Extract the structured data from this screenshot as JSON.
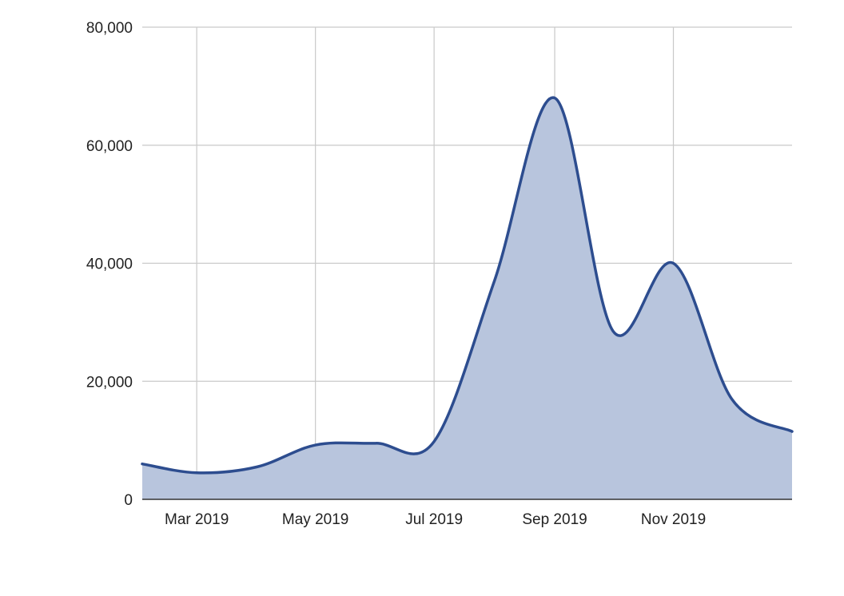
{
  "chart_data": {
    "type": "area",
    "title": "",
    "xlabel": "",
    "ylabel": "",
    "x": [
      "2019-02-01",
      "2019-03-01",
      "2019-04-01",
      "2019-05-01",
      "2019-06-01",
      "2019-07-01",
      "2019-08-01",
      "2019-09-01",
      "2019-10-01",
      "2019-11-01",
      "2019-12-01",
      "2020-01-01"
    ],
    "series": [
      {
        "values": [
          6000,
          4500,
          5500,
          9200,
          9500,
          9800,
          37000,
          68000,
          28500,
          40000,
          17000,
          11500
        ]
      }
    ],
    "ylim": [
      0,
      80000
    ],
    "xlim": [
      "2019-02-01",
      "2020-01-01"
    ],
    "yticks": [
      {
        "value": 0,
        "label": "0"
      },
      {
        "value": 20000,
        "label": "20,000"
      },
      {
        "value": 40000,
        "label": "40,000"
      },
      {
        "value": 60000,
        "label": "60,000"
      },
      {
        "value": 80000,
        "label": "80,000"
      }
    ],
    "xticks": [
      {
        "value": "2019-03-01",
        "label": "Mar 2019"
      },
      {
        "value": "2019-05-01",
        "label": "May 2019"
      },
      {
        "value": "2019-07-01",
        "label": "Jul 2019"
      },
      {
        "value": "2019-09-01",
        "label": "Sep 2019"
      },
      {
        "value": "2019-11-01",
        "label": "Nov 2019"
      }
    ],
    "grid": true,
    "legend": "none",
    "colors": {
      "line": "#2d4d8f",
      "fill": "#b8c5dd",
      "grid": "#c9c9c9"
    }
  }
}
